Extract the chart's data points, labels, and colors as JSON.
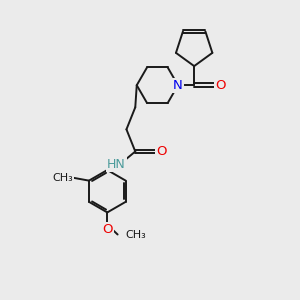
{
  "bg_color": "#ebebeb",
  "bond_color": "#1a1a1a",
  "N_color": "#0000ee",
  "O_color": "#ee0000",
  "NH_color": "#4a9a9a",
  "font_size": 8.5,
  "line_width": 1.4,
  "dbo": 0.07,
  "figsize": [
    3.0,
    3.0
  ],
  "dpi": 100,
  "xlim": [
    0,
    10
  ],
  "ylim": [
    0,
    10
  ]
}
